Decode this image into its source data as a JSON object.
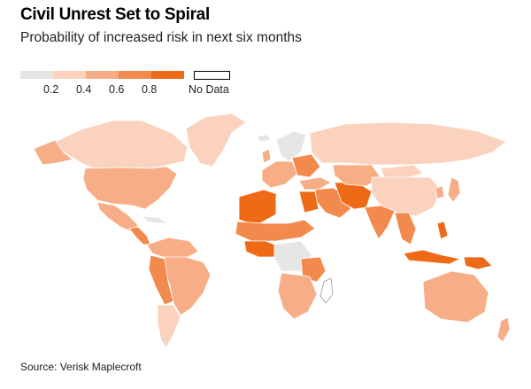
{
  "header": {
    "title": "Civil Unrest Set to Spiral",
    "subtitle": "Probability of increased risk in next six months"
  },
  "legend": {
    "bins": [
      {
        "color": "#e6e6e6"
      },
      {
        "color": "#fbd2bd"
      },
      {
        "color": "#f7ae86"
      },
      {
        "color": "#f28a4d"
      },
      {
        "color": "#ee6a16"
      }
    ],
    "tick_labels": [
      "0.2",
      "0.4",
      "0.6",
      "0.8"
    ],
    "no_data_label": "No Data",
    "no_data_color": "#ffffff"
  },
  "map_colors": {
    "land_low": "#e6e6e6",
    "land_02_04": "#fbd2bd",
    "land_04_06": "#f7ae86",
    "land_06_08": "#f28a4d",
    "land_08_1": "#ee6a16",
    "no_data": "#ffffff",
    "border": "#ffffff"
  },
  "footer": {
    "source": "Source: Verisk Maplecroft"
  }
}
